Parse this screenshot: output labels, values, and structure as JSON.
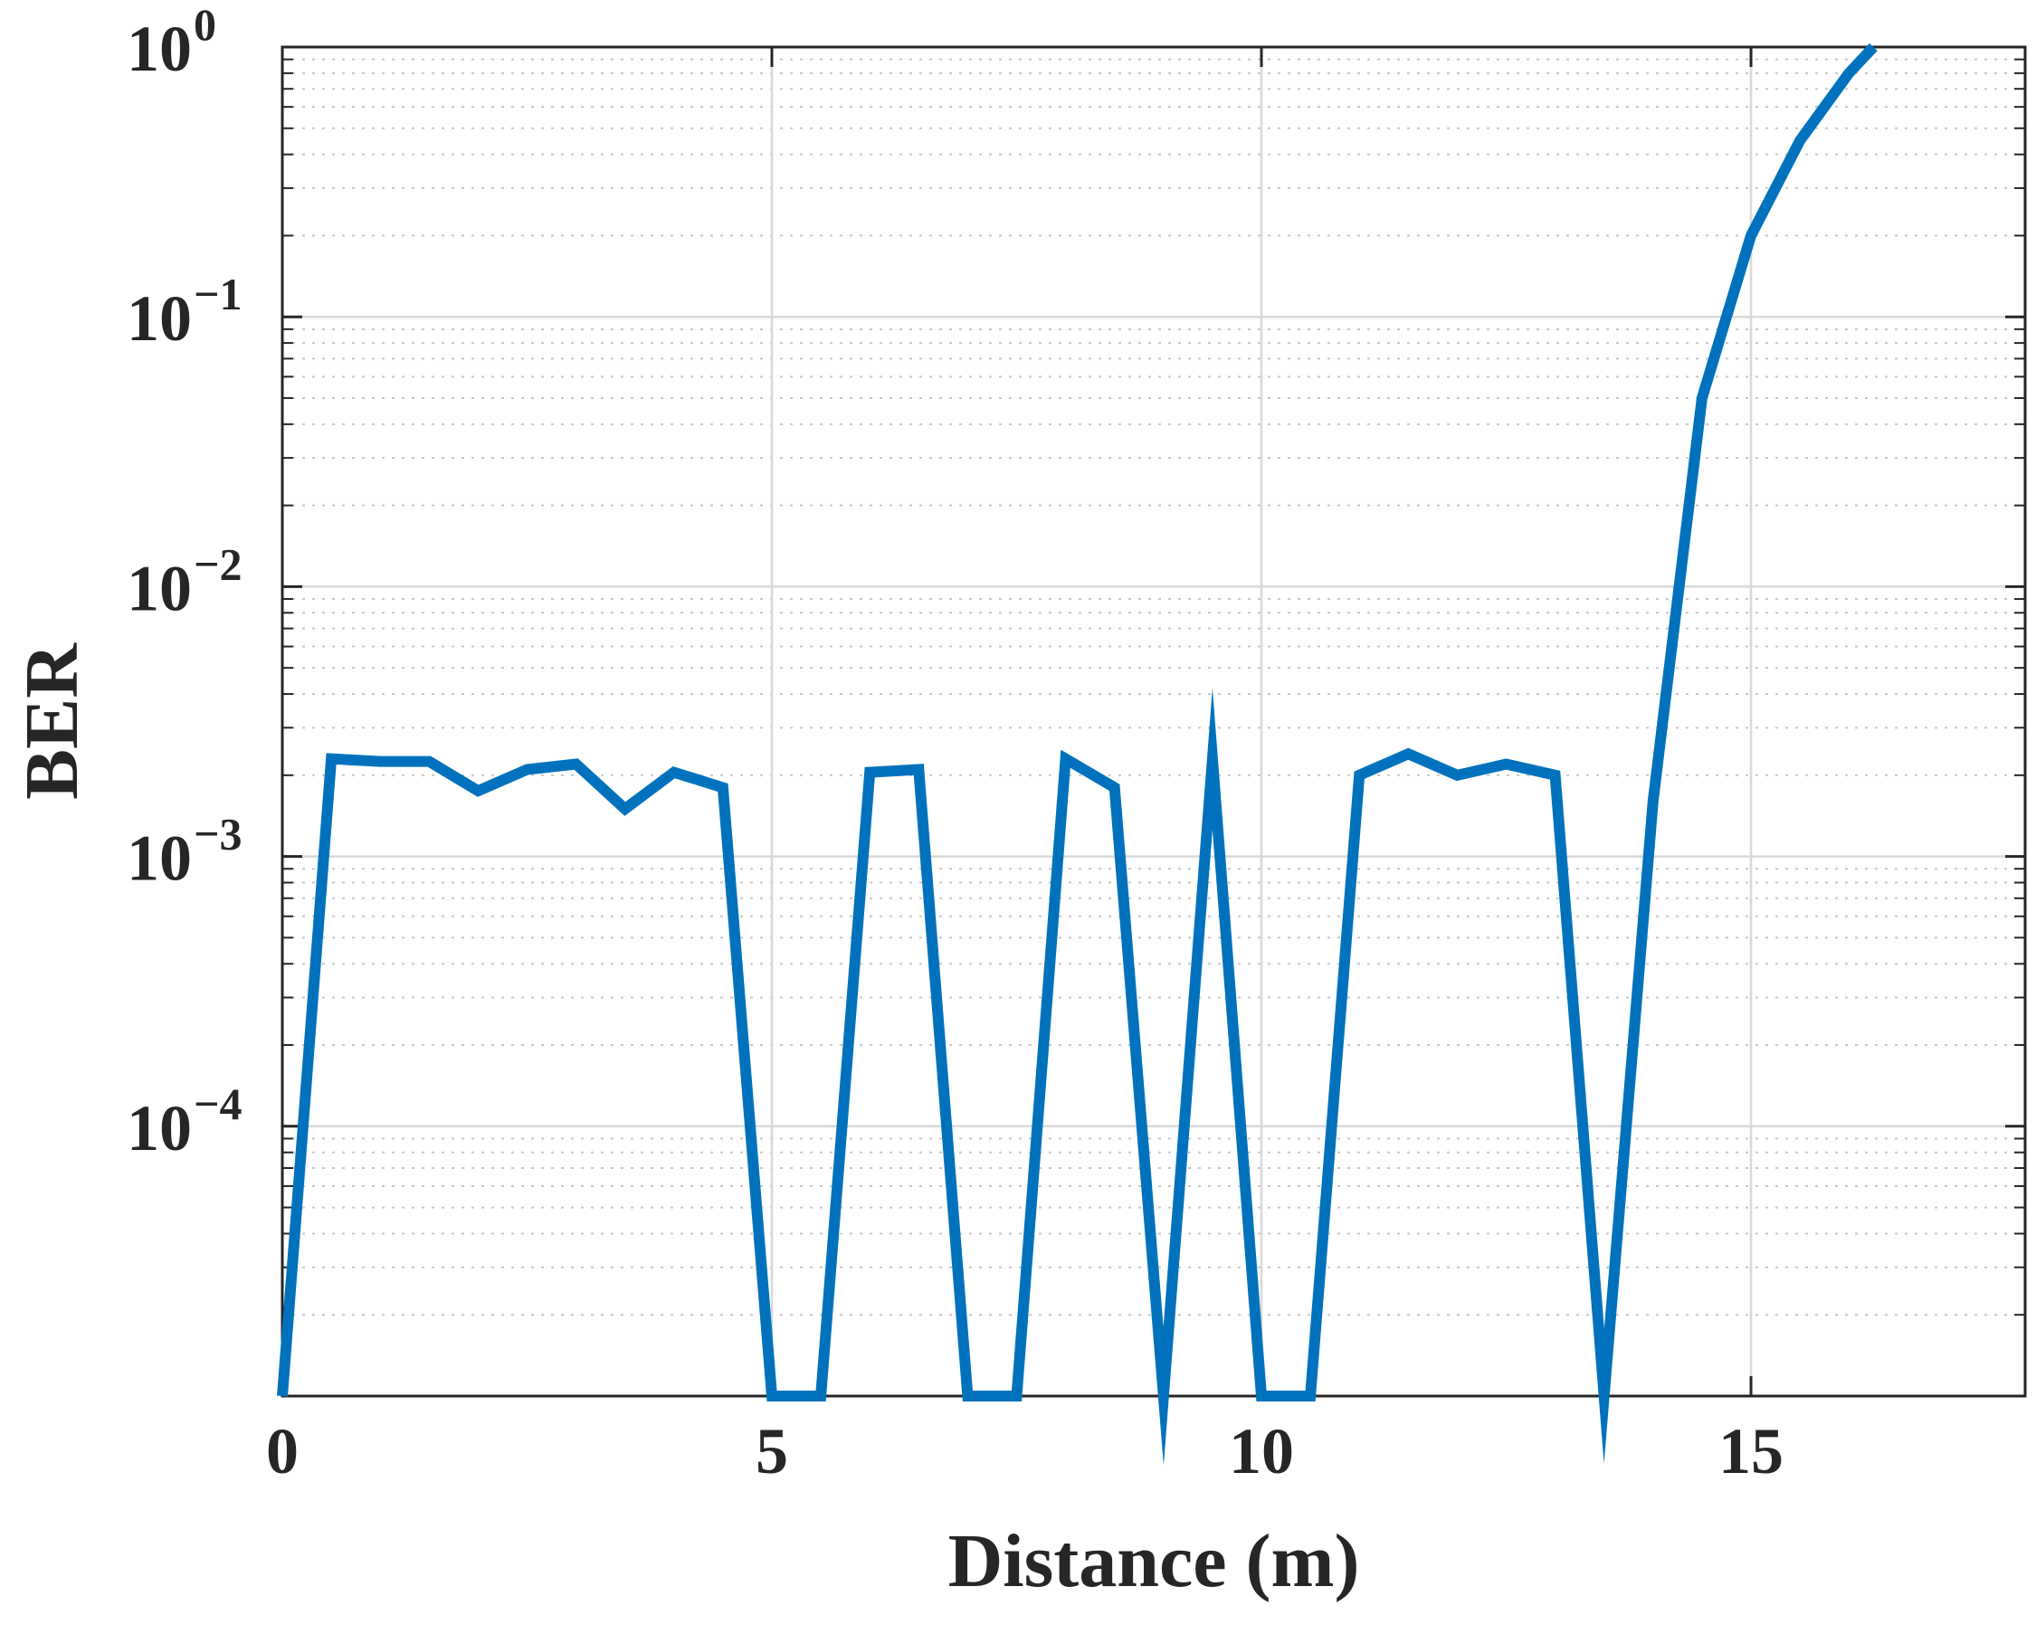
{
  "chart_data": {
    "type": "line",
    "title": "",
    "xlabel": "Distance (m)",
    "ylabel": "BER",
    "x_ticks": [
      "0",
      "5",
      "10",
      "15"
    ],
    "x_tick_values": [
      0,
      5,
      10,
      15
    ],
    "y_ticks": [
      {
        "base": "10",
        "exp": "0",
        "value": 1
      },
      {
        "base": "10",
        "exp": "−1",
        "value": 0.1
      },
      {
        "base": "10",
        "exp": "−2",
        "value": 0.01
      },
      {
        "base": "10",
        "exp": "−3",
        "value": 0.001
      },
      {
        "base": "10",
        "exp": "−4",
        "value": 0.0001
      }
    ],
    "xlim": [
      0,
      17.8
    ],
    "ylim": [
      1e-05,
      1
    ],
    "yscale": "log",
    "grid": true,
    "minor_grid": true,
    "series": [
      {
        "color": "#0072BD",
        "x": [
          0,
          0.5,
          1,
          1.5,
          2,
          2.5,
          3,
          3.5,
          4,
          4.5,
          5,
          5.5,
          6,
          6.5,
          7,
          7.5,
          8,
          8.5,
          9,
          9.5,
          10,
          10.5,
          11,
          11.5,
          12,
          12.5,
          13,
          13.5,
          14,
          14.5,
          15,
          15.5,
          16,
          16.25
        ],
        "y": [
          1e-05,
          0.0023,
          0.00225,
          0.00225,
          0.00175,
          0.0021,
          0.0022,
          0.0015,
          0.00205,
          0.0018,
          1e-05,
          1e-05,
          0.00205,
          0.0021,
          1e-05,
          1e-05,
          0.0023,
          0.0018,
          1e-05,
          0.0023,
          1e-05,
          1e-05,
          0.002,
          0.0024,
          0.002,
          0.0022,
          0.002,
          1e-05,
          0.0016,
          0.05,
          0.2,
          0.45,
          0.8,
          1.0
        ]
      }
    ]
  }
}
